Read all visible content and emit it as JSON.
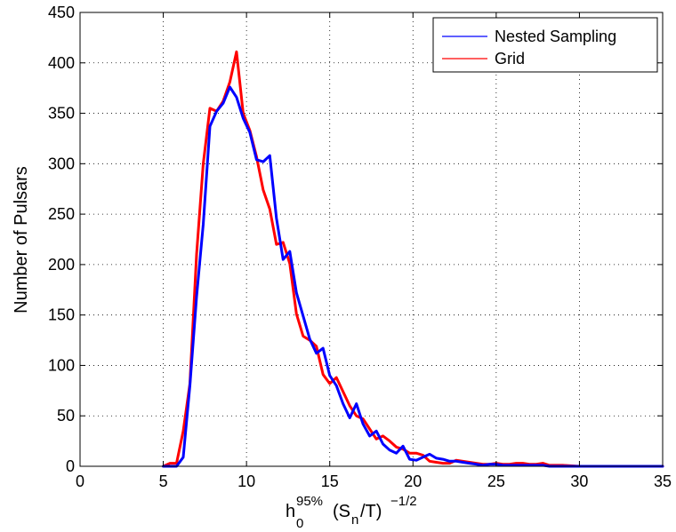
{
  "chart_data": {
    "type": "line",
    "title": "",
    "xlabel": "h0 95% (Sn/T)^-1/2",
    "xlabel_parts": {
      "base": "h",
      "sub": "0",
      "sup": "95%",
      "middle_open": "(S",
      "middle_sub": "n",
      "middle_close": "/T)",
      "power": "−1/2"
    },
    "ylabel": "Number of Pulsars",
    "xlim": [
      0,
      35
    ],
    "ylim": [
      0,
      450
    ],
    "xticks": [
      0,
      5,
      10,
      15,
      20,
      25,
      30,
      35
    ],
    "yticks": [
      0,
      50,
      100,
      150,
      200,
      250,
      300,
      350,
      400,
      450
    ],
    "grid": true,
    "legend_position": "top-right",
    "series": [
      {
        "name": "Nested Sampling",
        "color": "#0000ff",
        "x": [
          5.0,
          5.4,
          5.8,
          6.2,
          6.6,
          7.0,
          7.4,
          7.8,
          8.2,
          8.6,
          9.0,
          9.4,
          9.8,
          10.2,
          10.6,
          11.0,
          11.4,
          11.8,
          12.2,
          12.6,
          13.0,
          13.4,
          13.8,
          14.2,
          14.6,
          15.0,
          15.4,
          15.8,
          16.2,
          16.6,
          17.0,
          17.4,
          17.8,
          18.2,
          18.6,
          19.0,
          19.4,
          19.8,
          20.2,
          20.6,
          21.0,
          21.4,
          21.8,
          22.2,
          22.6,
          23.0,
          23.4,
          23.8,
          24.2,
          24.6,
          25.0,
          25.4,
          25.8,
          26.2,
          26.6,
          27.0,
          27.4,
          27.8,
          28.2,
          28.6,
          29.0,
          30.0,
          31.0,
          32.0,
          33.0,
          34.0,
          35.0
        ],
        "values": [
          0,
          0,
          0,
          9,
          80,
          168,
          240,
          337,
          352,
          360,
          376,
          366,
          345,
          331,
          304,
          302,
          308,
          246,
          205,
          213,
          172,
          149,
          126,
          112,
          117,
          90,
          80,
          62,
          48,
          62,
          42,
          30,
          35,
          22,
          16,
          13,
          20,
          7,
          6,
          9,
          12,
          8,
          7,
          5,
          5,
          4,
          3,
          2,
          1,
          2,
          2,
          1,
          1,
          1,
          1,
          1,
          1,
          1,
          0,
          0,
          0,
          0,
          0,
          0,
          0,
          0,
          0
        ]
      },
      {
        "name": "Grid",
        "color": "#ff0000",
        "x": [
          5.0,
          5.4,
          5.8,
          6.2,
          6.6,
          7.0,
          7.4,
          7.8,
          8.2,
          8.6,
          9.0,
          9.4,
          9.8,
          10.2,
          10.6,
          11.0,
          11.4,
          11.8,
          12.2,
          12.6,
          13.0,
          13.4,
          13.8,
          14.2,
          14.6,
          15.0,
          15.4,
          15.8,
          16.2,
          16.6,
          17.0,
          17.4,
          17.8,
          18.2,
          18.6,
          19.0,
          19.4,
          19.8,
          20.2,
          20.6,
          21.0,
          21.4,
          21.8,
          22.2,
          22.6,
          23.0,
          23.4,
          23.8,
          24.2,
          24.6,
          25.0,
          25.4,
          25.8,
          26.2,
          26.6,
          27.0,
          27.4,
          27.8,
          28.2,
          28.6,
          29.0,
          30.0,
          31.0,
          32.0,
          33.0,
          34.0,
          35.0
        ],
        "values": [
          0,
          3,
          3,
          35,
          82,
          210,
          300,
          355,
          352,
          362,
          381,
          411,
          350,
          333,
          307,
          274,
          255,
          220,
          222,
          201,
          151,
          129,
          125,
          119,
          91,
          82,
          88,
          74,
          60,
          50,
          47,
          37,
          27,
          30,
          25,
          19,
          17,
          13,
          13,
          11,
          5,
          4,
          3,
          3,
          6,
          5,
          4,
          3,
          2,
          2,
          3,
          2,
          2,
          3,
          3,
          2,
          2,
          3,
          1,
          1,
          1,
          0,
          0,
          0,
          0,
          0,
          0
        ]
      }
    ]
  }
}
